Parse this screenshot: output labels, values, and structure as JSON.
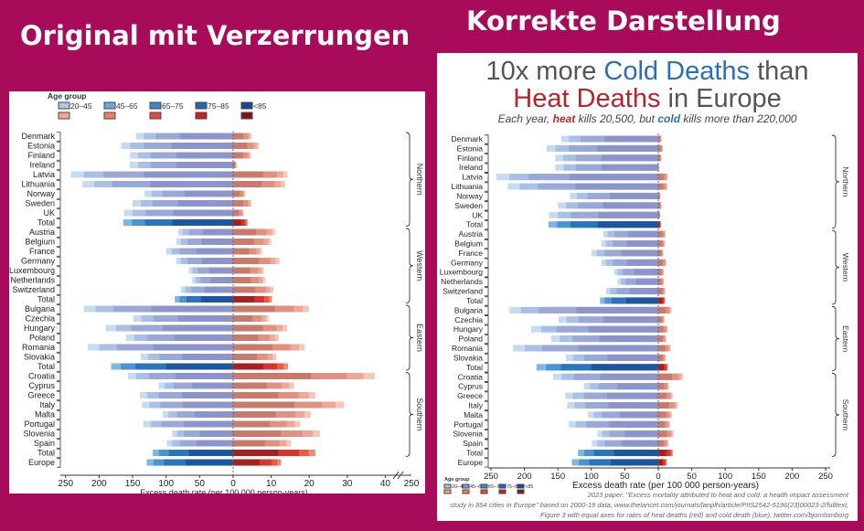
{
  "headers": {
    "left": "Original mit Verzerrungen",
    "right": "Korrekte Darstellung"
  },
  "colors": {
    "background": "#a90b5b",
    "cold": "#2b6fb5",
    "heat": "#c0272d",
    "title_gray": "#555555"
  },
  "legend": {
    "title": "Age group",
    "groups": [
      "20–45",
      "45–65",
      "65–75",
      "75–85",
      "<85"
    ]
  },
  "right_title": {
    "l1a": "10x more ",
    "l1b": "Cold Deaths",
    "l1c": " than",
    "l2a": "Heat Deaths",
    "l2b": " in Europe",
    "sub_a": "Each year, ",
    "sub_b": "heat",
    "sub_c": " kills 20,500, but ",
    "sub_d": "cold",
    "sub_e": " kills more than 220,000"
  },
  "footnote": [
    "2023 paper: \"Excess mortality attributed to heat and cold: a health impact assessment",
    "study in 854 cities in Europe\" based on 2000-19 data, www.thelancet.com/journals/lanplh/article/PIIS2542-5196(23)00023-2/fulltext,",
    "Figure 3 with equal axes for rates of heat deaths (red) and cold death (blue). twitter.com/bjornlomborg"
  ],
  "chart_data": [
    {
      "type": "bar",
      "title": "",
      "xlabel": "Excess death rate (per 100 000 person-years)",
      "cold_ticks": [
        250,
        200,
        150,
        100,
        50,
        0
      ],
      "heat_ticks": [
        10,
        20,
        30,
        40
      ],
      "heat_break_tick": 250,
      "xlim_cold": [
        250,
        0
      ],
      "xlim_heat": [
        0,
        40
      ],
      "regions": [
        {
          "name": "Northern",
          "rows": [
            "Denmark",
            "Estonia",
            "Finland",
            "Ireland",
            "Latvia",
            "Lithuania",
            "Norway",
            "Sweden",
            "UK",
            "Total"
          ],
          "cold": [
            145,
            167,
            154,
            154,
            242,
            225,
            132,
            150,
            163,
            164
          ],
          "heat": [
            4.8,
            6.7,
            4.7,
            0.9,
            14.3,
            13.7,
            3.2,
            4.8,
            2.8,
            3.8
          ]
        },
        {
          "name": "Western",
          "rows": [
            "Austria",
            "Belgium",
            "France",
            "Germany",
            "Luxembourg",
            "Netherlands",
            "Switzerland",
            "Total"
          ],
          "cold": [
            82,
            85,
            100,
            85,
            66,
            61,
            78,
            87
          ],
          "heat": [
            11.0,
            10.0,
            7.6,
            12.2,
            8.1,
            8.4,
            10.6,
            10.2
          ]
        },
        {
          "name": "Eastern",
          "rows": [
            "Bulgaria",
            "Czechia",
            "Hungary",
            "Poland",
            "Romania",
            "Slovakia",
            "Total"
          ],
          "cold": [
            223,
            149,
            190,
            160,
            217,
            138,
            182
          ],
          "heat": [
            19.9,
            9.3,
            14.2,
            12.0,
            18.8,
            11.3,
            14.4
          ]
        },
        {
          "name": "Southern",
          "rows": [
            "Croatia",
            "Cyprus",
            "Greece",
            "Italy",
            "Malta",
            "Portugal",
            "Slovenia",
            "Spain",
            "Total"
          ],
          "cold": [
            157,
            111,
            139,
            136,
            105,
            134,
            91,
            99,
            120
          ],
          "heat": [
            37.2,
            16.0,
            21.6,
            29.2,
            20.4,
            17.6,
            22.8,
            15.2,
            21.6
          ]
        },
        {
          "name": "",
          "rows": [
            "Europe"
          ],
          "cold": [
            129
          ],
          "heat": [
            12.6
          ]
        }
      ]
    },
    {
      "type": "bar",
      "title": "10x more Cold Deaths than Heat Deaths in Europe",
      "xlabel": "Excess death rate (per 100 000 person-years)",
      "cold_ticks": [
        250,
        200,
        150,
        100,
        50,
        0
      ],
      "heat_ticks": [
        50,
        100,
        150,
        200,
        250
      ],
      "xlim_cold": [
        250,
        0
      ],
      "xlim_heat": [
        0,
        250
      ],
      "same_data_as": "chart 1"
    }
  ]
}
